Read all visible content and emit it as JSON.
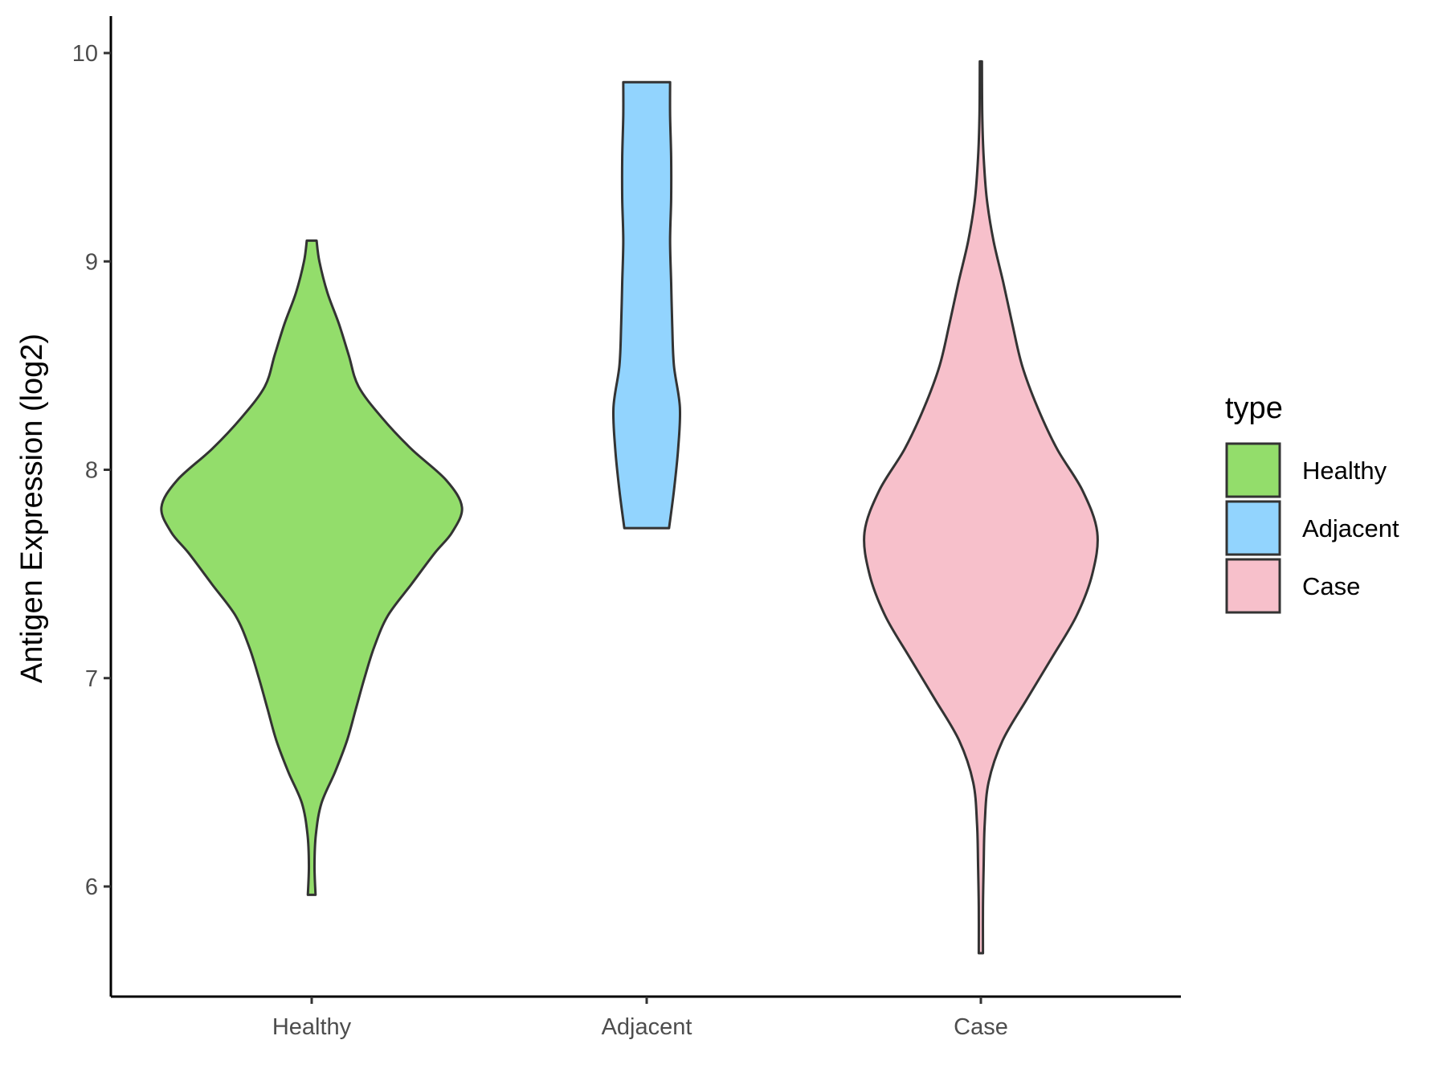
{
  "chart_data": {
    "type": "violin",
    "ylabel": "Antigen Expression (log2)",
    "xlabel": "",
    "ylim": [
      5.5,
      10.2
    ],
    "yticks": [
      6,
      7,
      8,
      9,
      10
    ],
    "categories": [
      "Healthy",
      "Adjacent",
      "Case"
    ],
    "grid": false,
    "legend": {
      "title": "type",
      "placement": "right",
      "entries": [
        {
          "label": "Healthy",
          "color": "#93dd6b"
        },
        {
          "label": "Adjacent",
          "color": "#92d4fe"
        },
        {
          "label": "Case",
          "color": "#f7c0cb"
        }
      ]
    },
    "series": [
      {
        "category": "Healthy",
        "color": "#93dd6b",
        "range": [
          5.96,
          9.1
        ],
        "density_profile": [
          [
            5.96,
            0.011
          ],
          [
            6.1,
            0.008
          ],
          [
            6.25,
            0.012
          ],
          [
            6.4,
            0.028
          ],
          [
            6.55,
            0.067
          ],
          [
            6.7,
            0.101
          ],
          [
            6.85,
            0.126
          ],
          [
            7.0,
            0.151
          ],
          [
            7.15,
            0.179
          ],
          [
            7.3,
            0.218
          ],
          [
            7.45,
            0.285
          ],
          [
            7.6,
            0.352
          ],
          [
            7.7,
            0.402
          ],
          [
            7.82,
            0.43
          ],
          [
            7.95,
            0.385
          ],
          [
            8.1,
            0.285
          ],
          [
            8.25,
            0.201
          ],
          [
            8.4,
            0.134
          ],
          [
            8.55,
            0.106
          ],
          [
            8.7,
            0.078
          ],
          [
            8.85,
            0.045
          ],
          [
            9.0,
            0.022
          ],
          [
            9.1,
            0.014
          ]
        ]
      },
      {
        "category": "Adjacent",
        "color": "#92d4fe",
        "range": [
          7.72,
          9.86
        ],
        "density_profile": [
          [
            7.72,
            0.064
          ],
          [
            7.9,
            0.078
          ],
          [
            8.1,
            0.09
          ],
          [
            8.3,
            0.095
          ],
          [
            8.5,
            0.078
          ],
          [
            8.7,
            0.073
          ],
          [
            8.9,
            0.07
          ],
          [
            9.1,
            0.067
          ],
          [
            9.3,
            0.07
          ],
          [
            9.5,
            0.07
          ],
          [
            9.7,
            0.067
          ],
          [
            9.86,
            0.067
          ]
        ]
      },
      {
        "category": "Case",
        "color": "#f7c0cb",
        "range": [
          5.68,
          9.96
        ],
        "density_profile": [
          [
            5.68,
            0.006
          ],
          [
            5.9,
            0.006
          ],
          [
            6.1,
            0.008
          ],
          [
            6.3,
            0.011
          ],
          [
            6.5,
            0.022
          ],
          [
            6.7,
            0.062
          ],
          [
            6.9,
            0.132
          ],
          [
            7.1,
            0.204
          ],
          [
            7.3,
            0.274
          ],
          [
            7.5,
            0.319
          ],
          [
            7.7,
            0.333
          ],
          [
            7.9,
            0.291
          ],
          [
            8.1,
            0.218
          ],
          [
            8.3,
            0.162
          ],
          [
            8.5,
            0.118
          ],
          [
            8.7,
            0.09
          ],
          [
            8.9,
            0.064
          ],
          [
            9.1,
            0.036
          ],
          [
            9.3,
            0.017
          ],
          [
            9.5,
            0.008
          ],
          [
            9.7,
            0.004
          ],
          [
            9.96,
            0.003
          ]
        ]
      }
    ]
  }
}
